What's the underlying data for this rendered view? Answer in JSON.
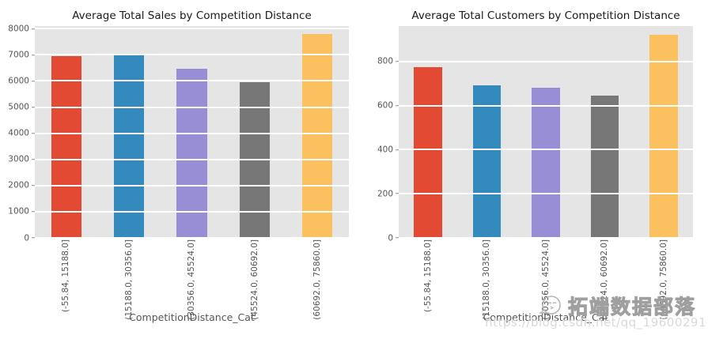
{
  "figure": {
    "background": "#FFFFFF",
    "plot_background": "#E5E5E5",
    "gridline_color": "#FFFFFF",
    "tick_text_color": "#555555",
    "title_text_color": "#1A1A1A",
    "style": "ggplot"
  },
  "palette": [
    "#E24A33",
    "#348ABD",
    "#988ED5",
    "#777777",
    "#FBC15E"
  ],
  "chart_data": [
    {
      "type": "bar",
      "title": "Average Total Sales by Competition Distance",
      "xlabel": "CompetitionDistance_Cat",
      "ylabel": "",
      "categories": [
        "(-55.84, 15188.0]",
        "(15188.0, 30356.0]",
        "(30356.0, 45524.0]",
        "(45524.0, 60692.0]",
        "(60692.0, 75860.0]"
      ],
      "values": [
        6940,
        7030,
        6460,
        5960,
        7790
      ],
      "bar_colors": [
        "#E24A33",
        "#348ABD",
        "#988ED5",
        "#777777",
        "#FBC15E"
      ],
      "yticks": [
        0,
        1000,
        2000,
        3000,
        4000,
        5000,
        6000,
        7000,
        8000
      ],
      "ylim": [
        0,
        8100
      ],
      "grid": true,
      "legend": null
    },
    {
      "type": "bar",
      "title": "Average Total Customers by Competition Distance",
      "xlabel": "CompetitionDistance_Cat",
      "ylabel": "",
      "categories": [
        "(-55.84, 15188.0]",
        "(15188.0, 30356.0]",
        "(30356.0, 45524.0]",
        "(45524.0, 60692.0]",
        "(60692.0, 75860.0]"
      ],
      "values": [
        772,
        690,
        682,
        646,
        922
      ],
      "bar_colors": [
        "#E24A33",
        "#348ABD",
        "#988ED5",
        "#777777",
        "#FBC15E"
      ],
      "yticks": [
        0,
        200,
        400,
        600,
        800
      ],
      "ylim": [
        0,
        960
      ],
      "grid": true,
      "legend": null
    }
  ],
  "watermark": {
    "brand_text": "拓端数据部落",
    "url_text": "https://blog.csdn.net/qq_19600291",
    "logo": "bird-logo-icon"
  }
}
